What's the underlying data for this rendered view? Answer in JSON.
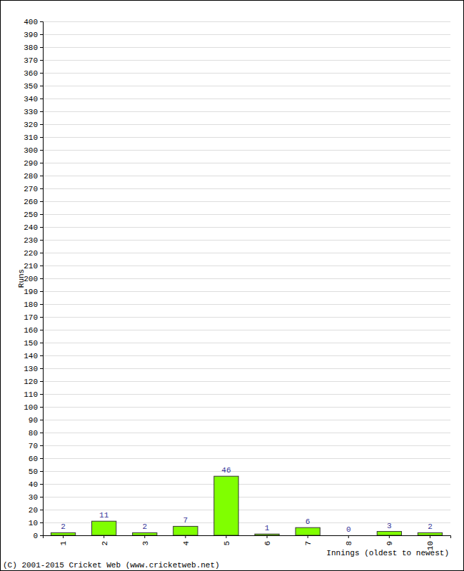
{
  "chart_data": {
    "type": "bar",
    "xlabel": "Innings (oldest to newest)",
    "ylabel": "Runs",
    "annotations": [
      "(C) 2001-2015 Cricket Web (www.cricketweb.net)"
    ],
    "categories": [
      "1",
      "2",
      "3",
      "4",
      "5",
      "6",
      "7",
      "8",
      "9",
      "10"
    ],
    "values": [
      2,
      11,
      2,
      7,
      46,
      1,
      6,
      0,
      3,
      2
    ],
    "color": "#80ff00",
    "ylim": [
      0,
      400
    ],
    "yticks": [
      0,
      10,
      20,
      30,
      40,
      50,
      60,
      70,
      80,
      90,
      100,
      110,
      120,
      130,
      140,
      150,
      160,
      170,
      180,
      190,
      200,
      210,
      220,
      230,
      240,
      250,
      260,
      270,
      280,
      290,
      300,
      310,
      320,
      330,
      340,
      350,
      360,
      370,
      380,
      390,
      400
    ],
    "grid": true,
    "data_labels": true
  }
}
